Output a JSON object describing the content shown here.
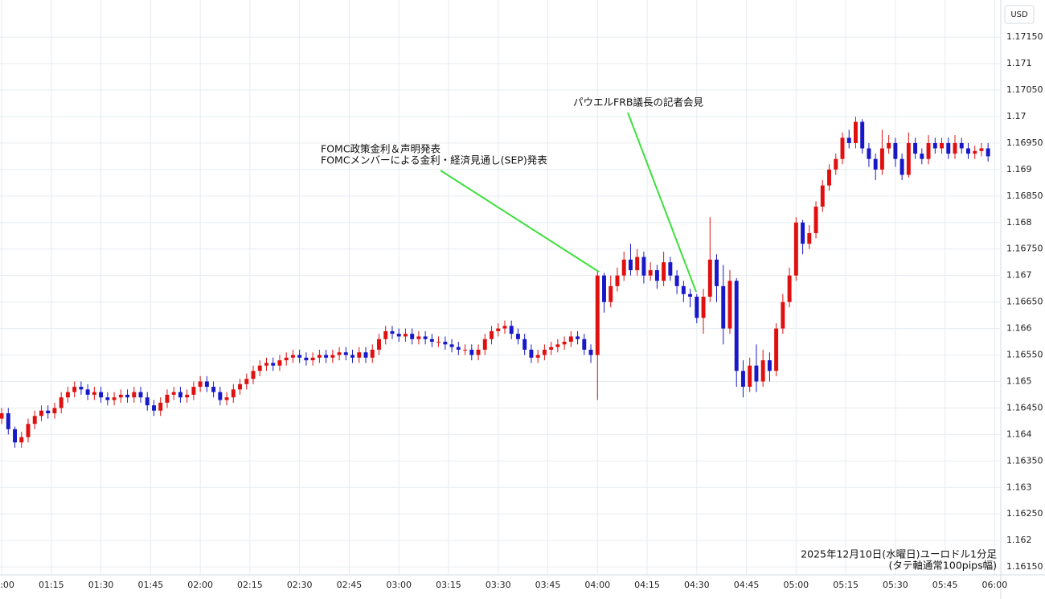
{
  "chart_data": {
    "type": "candlestick",
    "currency": "USD",
    "caption": [
      "2025年12月10日(水曜日)ユーロドル1分足",
      "(タテ軸通常100pips幅)"
    ],
    "annotations": [
      {
        "lines": [
          "FOMC政策金利＆声明発表",
          "FOMCメンバーによる金利・経済見通し(SEP)発表"
        ]
      },
      {
        "lines": [
          "パウエルFRB議長の記者会見"
        ]
      }
    ],
    "up_color": "#e01010",
    "down_color": "#1818c8",
    "grid": true,
    "xlim": [
      -0.25,
      150.8
    ],
    "xticks": [
      {
        "value": 0,
        "label": "01:00"
      },
      {
        "value": 7.5,
        "label": "01:15"
      },
      {
        "value": 15,
        "label": "01:30"
      },
      {
        "value": 22.5,
        "label": "01:45"
      },
      {
        "value": 30,
        "label": "02:00"
      },
      {
        "value": 37.5,
        "label": "02:15"
      },
      {
        "value": 45,
        "label": "02:30"
      },
      {
        "value": 52.5,
        "label": "02:45"
      },
      {
        "value": 60,
        "label": "03:00"
      },
      {
        "value": 67.5,
        "label": "03:15"
      },
      {
        "value": 75,
        "label": "03:30"
      },
      {
        "value": 82.5,
        "label": "03:45"
      },
      {
        "value": 90,
        "label": "04:00"
      },
      {
        "value": 97.5,
        "label": "04:15"
      },
      {
        "value": 105,
        "label": "04:30"
      },
      {
        "value": 112.5,
        "label": "04:45"
      },
      {
        "value": 120,
        "label": "05:00"
      },
      {
        "value": 127.5,
        "label": "05:15"
      },
      {
        "value": 135,
        "label": "05:30"
      },
      {
        "value": 142.5,
        "label": "05:45"
      },
      {
        "value": 150,
        "label": "06:00"
      }
    ],
    "ylim": [
      1.16135,
      1.1722
    ],
    "yticks": [
      {
        "value": 1.1615,
        "label": "1.16150"
      },
      1.162,
      {
        "value": 1.1625,
        "label": "1.16250"
      },
      1.163,
      {
        "value": 1.1635,
        "label": "1.16350"
      },
      1.164,
      {
        "value": 1.1645,
        "label": "1.16450"
      },
      1.165,
      {
        "value": 1.1655,
        "label": "1.16550"
      },
      1.166,
      {
        "value": 1.1665,
        "label": "1.16650"
      },
      1.167,
      {
        "value": 1.1675,
        "label": "1.16750"
      },
      1.168,
      {
        "value": 1.1685,
        "label": "1.16850"
      },
      1.169,
      {
        "value": 1.1695,
        "label": "1.16950"
      },
      1.17,
      {
        "value": 1.1705,
        "label": "1.17050"
      },
      1.171,
      {
        "value": 1.1715,
        "label": "1.17150"
      }
    ],
    "open": [
      1.1643,
      1.1644,
      1.1641,
      1.16385,
      1.16395,
      1.1642,
      1.16435,
      1.16445,
      1.1644,
      1.1645,
      1.1647,
      1.1648,
      1.1649,
      1.16485,
      1.16475,
      1.1648,
      1.1647,
      1.16465,
      1.1647,
      1.16475,
      1.1647,
      1.1648,
      1.1647,
      1.16455,
      1.16445,
      1.1646,
      1.16475,
      1.1648,
      1.1647,
      1.16475,
      1.1649,
      1.165,
      1.1649,
      1.1648,
      1.16465,
      1.1647,
      1.16485,
      1.16495,
      1.16505,
      1.1652,
      1.1653,
      1.16535,
      1.1653,
      1.1654,
      1.16545,
      1.1655,
      1.16545,
      1.1654,
      1.16545,
      1.1655,
      1.16545,
      1.1655,
      1.16555,
      1.1655,
      1.16545,
      1.16555,
      1.16545,
      1.1656,
      1.1658,
      1.16595,
      1.1659,
      1.16585,
      1.1659,
      1.1658,
      1.16585,
      1.1658,
      1.16575,
      1.16575,
      1.1657,
      1.16565,
      1.1656,
      1.1656,
      1.1655,
      1.1656,
      1.1658,
      1.16595,
      1.166,
      1.16605,
      1.1659,
      1.1658,
      1.1656,
      1.16545,
      1.1655,
      1.1656,
      1.16565,
      1.1657,
      1.16575,
      1.16585,
      1.1658,
      1.1656,
      1.1655,
      1.167,
      1.1665,
      1.1668,
      1.167,
      1.1673,
      1.1671,
      1.16735,
      1.167,
      1.1671,
      1.1669,
      1.16725,
      1.167,
      1.1668,
      1.16665,
      1.1666,
      1.1662,
      1.1666,
      1.1673,
      1.1668,
      1.166,
      1.1669,
      1.1652,
      1.1649,
      1.1653,
      1.165,
      1.1654,
      1.1652,
      1.166,
      1.1665,
      1.167,
      1.168,
      1.1676,
      1.1678,
      1.1683,
      1.1687,
      1.169,
      1.1692,
      1.1696,
      1.1695,
      1.1699,
      1.1694,
      1.1692,
      1.169,
      1.1694,
      1.1695,
      1.1692,
      1.1689,
      1.1695,
      1.1693,
      1.1692,
      1.1695,
      1.1694,
      1.1695,
      1.1693,
      1.1695,
      1.1694,
      1.1693,
      1.16935,
      1.1694
    ],
    "high": [
      1.1645,
      1.1645,
      1.16415,
      1.16405,
      1.1643,
      1.16445,
      1.16455,
      1.16455,
      1.1646,
      1.1648,
      1.1649,
      1.165,
      1.165,
      1.16495,
      1.1649,
      1.1649,
      1.1648,
      1.1648,
      1.16485,
      1.16485,
      1.1649,
      1.1649,
      1.1648,
      1.16465,
      1.1647,
      1.16485,
      1.1649,
      1.1649,
      1.16485,
      1.165,
      1.1651,
      1.1651,
      1.165,
      1.1649,
      1.1648,
      1.16495,
      1.16505,
      1.16515,
      1.1653,
      1.1654,
      1.16545,
      1.16545,
      1.1655,
      1.16555,
      1.1656,
      1.1656,
      1.16555,
      1.16555,
      1.1656,
      1.1656,
      1.1656,
      1.16565,
      1.16565,
      1.1656,
      1.16565,
      1.16565,
      1.1657,
      1.1659,
      1.16605,
      1.16605,
      1.166,
      1.166,
      1.166,
      1.16595,
      1.16595,
      1.1659,
      1.16585,
      1.16585,
      1.1658,
      1.16575,
      1.1657,
      1.1657,
      1.1657,
      1.1659,
      1.16605,
      1.1661,
      1.16615,
      1.16615,
      1.166,
      1.1659,
      1.1657,
      1.1656,
      1.1657,
      1.16575,
      1.1658,
      1.16585,
      1.16595,
      1.16595,
      1.1659,
      1.1657,
      1.1671,
      1.16705,
      1.167,
      1.16715,
      1.16745,
      1.1676,
      1.1675,
      1.16745,
      1.16725,
      1.1672,
      1.16745,
      1.16735,
      1.1671,
      1.1669,
      1.16675,
      1.16665,
      1.16675,
      1.1681,
      1.1674,
      1.1672,
      1.1671,
      1.16695,
      1.1654,
      1.16545,
      1.1657,
      1.1656,
      1.16555,
      1.1661,
      1.16665,
      1.16715,
      1.1681,
      1.16805,
      1.16795,
      1.1684,
      1.1688,
      1.1691,
      1.1693,
      1.1697,
      1.16975,
      1.17,
      1.16995,
      1.1695,
      1.1693,
      1.16975,
      1.16965,
      1.1696,
      1.1693,
      1.1697,
      1.1696,
      1.1694,
      1.16965,
      1.1696,
      1.1696,
      1.1696,
      1.16965,
      1.1696,
      1.1695,
      1.16945,
      1.1695,
      1.1695
    ],
    "low": [
      1.1642,
      1.164,
      1.16375,
      1.16375,
      1.16385,
      1.1641,
      1.16425,
      1.1643,
      1.1643,
      1.1644,
      1.1646,
      1.1647,
      1.16475,
      1.16465,
      1.16465,
      1.1646,
      1.16455,
      1.16455,
      1.1646,
      1.1646,
      1.1646,
      1.1646,
      1.16445,
      1.16435,
      1.16435,
      1.1645,
      1.16465,
      1.1646,
      1.1646,
      1.16465,
      1.1648,
      1.1648,
      1.1647,
      1.16455,
      1.16455,
      1.1646,
      1.16475,
      1.16485,
      1.16495,
      1.1651,
      1.1652,
      1.1652,
      1.1652,
      1.1653,
      1.16535,
      1.16535,
      1.1653,
      1.1653,
      1.16535,
      1.16535,
      1.16535,
      1.1654,
      1.1654,
      1.16535,
      1.16535,
      1.16535,
      1.16535,
      1.1655,
      1.1657,
      1.1658,
      1.16575,
      1.16575,
      1.1657,
      1.1657,
      1.1657,
      1.16565,
      1.16565,
      1.1656,
      1.16555,
      1.1655,
      1.1655,
      1.1654,
      1.1654,
      1.1655,
      1.1657,
      1.16585,
      1.1659,
      1.1658,
      1.1657,
      1.1655,
      1.16535,
      1.16535,
      1.1654,
      1.1655,
      1.16555,
      1.1656,
      1.16565,
      1.1657,
      1.1655,
      1.16535,
      1.16465,
      1.1663,
      1.1664,
      1.1667,
      1.1669,
      1.167,
      1.167,
      1.16685,
      1.1669,
      1.16675,
      1.1668,
      1.1669,
      1.16665,
      1.1665,
      1.1664,
      1.1661,
      1.1659,
      1.1665,
      1.1665,
      1.1657,
      1.1659,
      1.1649,
      1.1647,
      1.1648,
      1.1648,
      1.1649,
      1.165,
      1.1651,
      1.1659,
      1.1664,
      1.1669,
      1.1674,
      1.1675,
      1.1677,
      1.1682,
      1.1686,
      1.1689,
      1.1691,
      1.1694,
      1.1694,
      1.1693,
      1.16905,
      1.1688,
      1.1689,
      1.1693,
      1.16905,
      1.1688,
      1.16885,
      1.1692,
      1.1691,
      1.1691,
      1.1693,
      1.1693,
      1.1692,
      1.1692,
      1.1693,
      1.1692,
      1.1692,
      1.16925,
      1.16915
    ],
    "close": [
      1.1644,
      1.1641,
      1.16385,
      1.16395,
      1.1642,
      1.16435,
      1.16445,
      1.1644,
      1.1645,
      1.1647,
      1.1648,
      1.1649,
      1.16485,
      1.16475,
      1.1648,
      1.1647,
      1.16465,
      1.1647,
      1.16475,
      1.1647,
      1.1648,
      1.1647,
      1.16455,
      1.16445,
      1.1646,
      1.16475,
      1.1648,
      1.1647,
      1.16475,
      1.1649,
      1.165,
      1.1649,
      1.1648,
      1.16465,
      1.1647,
      1.16485,
      1.16495,
      1.16505,
      1.1652,
      1.1653,
      1.16535,
      1.1653,
      1.1654,
      1.16545,
      1.1655,
      1.16545,
      1.1654,
      1.16545,
      1.1655,
      1.16545,
      1.1655,
      1.16555,
      1.1655,
      1.16545,
      1.16555,
      1.16545,
      1.1656,
      1.1658,
      1.16595,
      1.1659,
      1.16585,
      1.1659,
      1.1658,
      1.16585,
      1.1658,
      1.16575,
      1.16575,
      1.1657,
      1.16565,
      1.1656,
      1.1656,
      1.1655,
      1.1656,
      1.1658,
      1.16595,
      1.166,
      1.16605,
      1.1659,
      1.1658,
      1.1656,
      1.16545,
      1.1655,
      1.1656,
      1.16565,
      1.1657,
      1.16575,
      1.16585,
      1.1658,
      1.1656,
      1.1655,
      1.167,
      1.1665,
      1.1668,
      1.167,
      1.1673,
      1.1671,
      1.16735,
      1.167,
      1.1671,
      1.1669,
      1.16725,
      1.167,
      1.1668,
      1.16665,
      1.1666,
      1.1662,
      1.1666,
      1.1673,
      1.1668,
      1.166,
      1.1669,
      1.1652,
      1.1649,
      1.1653,
      1.165,
      1.1654,
      1.1652,
      1.166,
      1.1665,
      1.167,
      1.168,
      1.1676,
      1.1678,
      1.1683,
      1.1687,
      1.169,
      1.1692,
      1.1696,
      1.1695,
      1.1699,
      1.1694,
      1.1692,
      1.169,
      1.1694,
      1.1695,
      1.1692,
      1.1689,
      1.1695,
      1.1693,
      1.1692,
      1.1695,
      1.1694,
      1.1695,
      1.1693,
      1.1695,
      1.1694,
      1.1693,
      1.16935,
      1.1694,
      1.16925
    ]
  }
}
